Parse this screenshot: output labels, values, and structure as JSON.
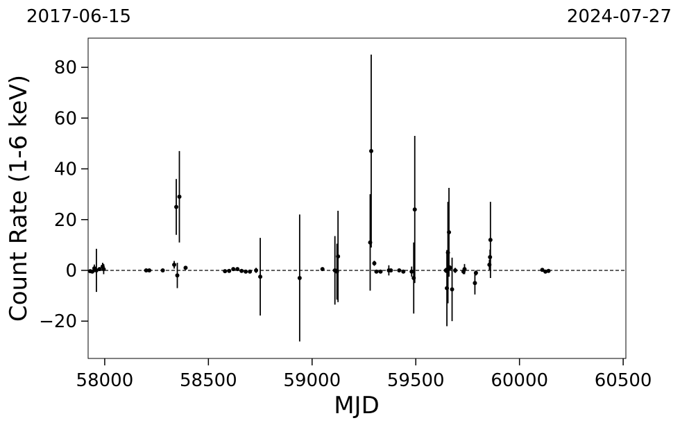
{
  "chart_data": {
    "type": "errorbar-scatter",
    "top_left_label": "2017-06-15",
    "top_right_label": "2024-07-27",
    "x_label": "MJD",
    "y_label": "Count Rate (1-6 keV)",
    "xlim": [
      57920,
      60513
    ],
    "ylim": [
      -34.7,
      91.5
    ],
    "xticks": [
      58000,
      58500,
      59000,
      59500,
      60000,
      60500
    ],
    "yticks": [
      {
        "value": -20,
        "label": "−20"
      },
      0,
      20,
      40,
      60,
      80
    ],
    "hline": 0,
    "color": "#000000",
    "series": [
      {
        "x": [
          57930,
          57940,
          57950,
          57960,
          57975,
          57990,
          57995,
          58200,
          58215,
          58280,
          58335,
          58345,
          58350,
          58360,
          58390,
          58580,
          58600,
          58620,
          58640,
          58660,
          58680,
          58700,
          58730,
          58750,
          58940,
          59050,
          59110,
          59120,
          59125,
          59280,
          59285,
          59300,
          59310,
          59330,
          59370,
          59380,
          59420,
          59440,
          59480,
          59490,
          59495,
          59645,
          59650,
          59655,
          59660,
          59665,
          59675,
          59690,
          59730,
          59735,
          59785,
          59790,
          59855,
          59858,
          59860,
          60110,
          60125,
          60140
        ],
        "values": [
          -0.3,
          -0.5,
          0.8,
          0,
          0.5,
          1.5,
          0.5,
          0,
          0,
          0,
          2.2,
          25,
          -2,
          29,
          1,
          -0.3,
          -0.2,
          0.5,
          0.5,
          -0.2,
          -0.5,
          -0.5,
          0,
          -2.5,
          -3,
          0.5,
          0,
          -0.5,
          5.5,
          11,
          47,
          2.8,
          -0.5,
          -0.5,
          0,
          0,
          0,
          -0.5,
          -0.5,
          -3,
          24,
          0,
          -7,
          7,
          15,
          1,
          -7.5,
          0,
          -0.5,
          0.5,
          -5,
          -1,
          2.2,
          5.2,
          12,
          0.2,
          -0.5,
          -0.2
        ],
        "errors": [
          0.5,
          0.5,
          1.5,
          8.5,
          0.5,
          1.5,
          2,
          0.3,
          0.3,
          0.3,
          1.5,
          11,
          5,
          18,
          0.5,
          0.5,
          0.5,
          0.5,
          0.5,
          0.3,
          0.3,
          0.3,
          1,
          15.3,
          25,
          0.5,
          13.5,
          11,
          18,
          19,
          38,
          1,
          0.5,
          0.5,
          2,
          0.5,
          0.5,
          0.5,
          2,
          14,
          29,
          1,
          15,
          20,
          17.5,
          1,
          12.5,
          1,
          1,
          2,
          4.5,
          1,
          2,
          3,
          15,
          0.5,
          0.3,
          0.3
        ]
      }
    ]
  }
}
